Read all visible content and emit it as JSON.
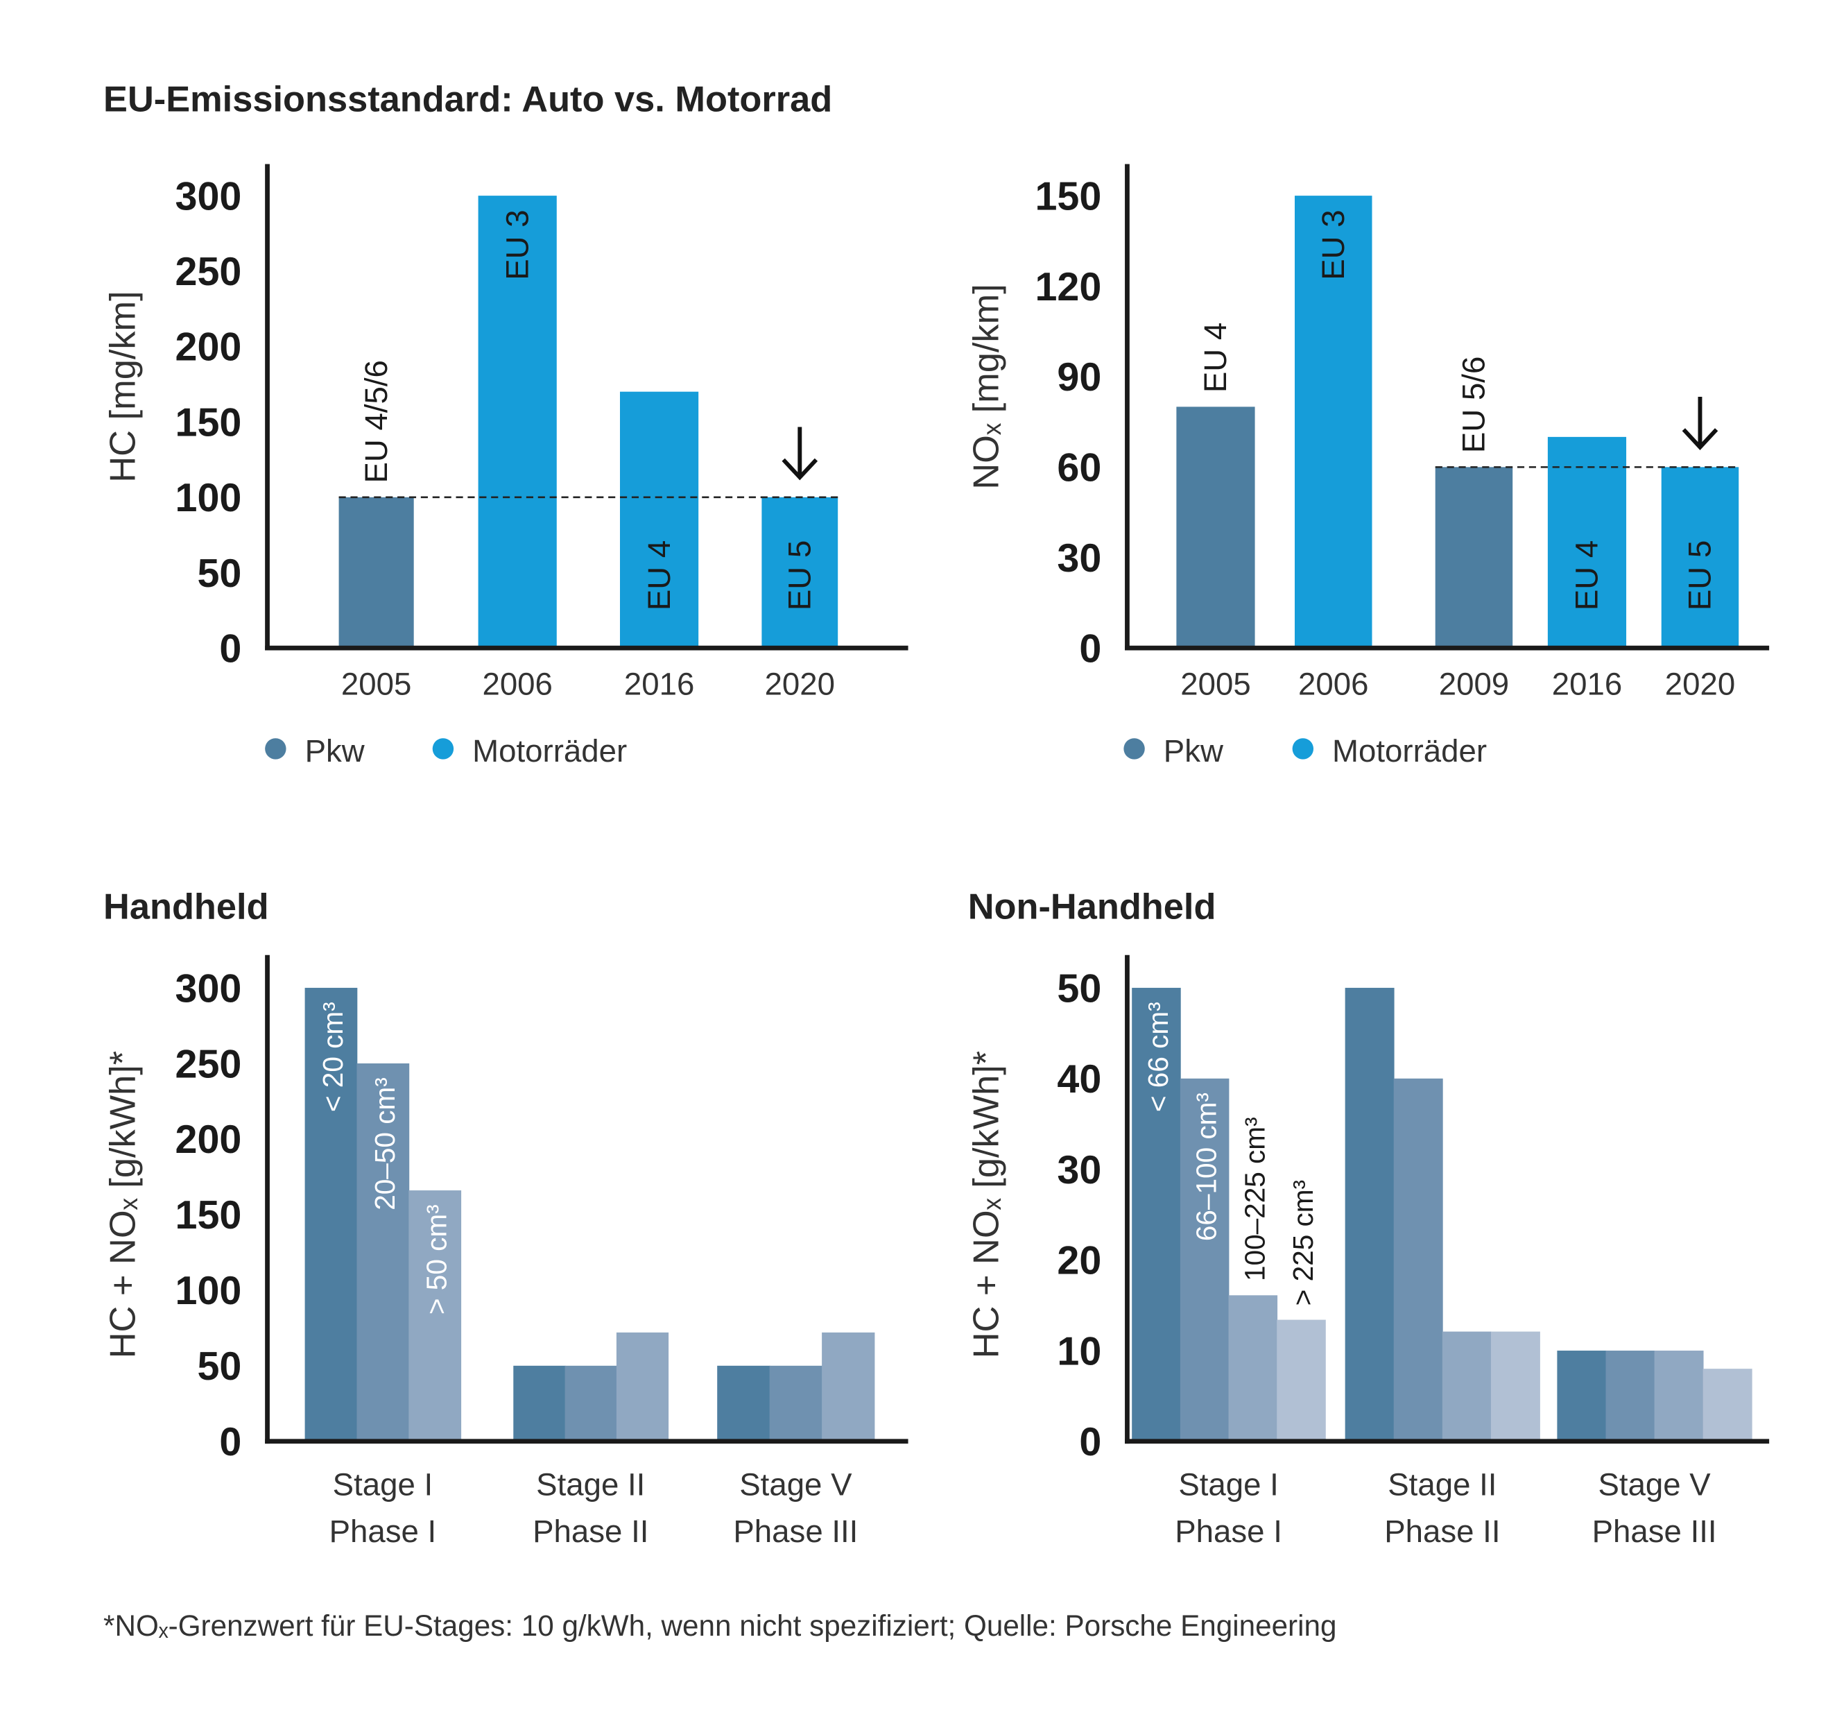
{
  "main_title": "EU-Emissionsstandard: Auto vs. Motorrad",
  "footnote": "*NOₓ-Grenzwert für EU-Stages: 10 g/kWh, wenn nicht spezifiziert; Quelle: Porsche Engineering",
  "colors": {
    "pkw": "#4d7ea0",
    "motorrad": "#169dd9",
    "shades": [
      "#4e7ea0",
      "#6f91b0",
      "#90a8c2",
      "#b1c0d4"
    ]
  },
  "chart_data": [
    {
      "id": "hc",
      "type": "bar",
      "title": "",
      "ylabel": "HC [mg/km]",
      "ylim": [
        0,
        300
      ],
      "yticks": [
        "0",
        "50",
        "100",
        "150",
        "200",
        "250",
        "300"
      ],
      "categories": [
        "2005",
        "2006",
        "2016",
        "2020"
      ],
      "values": [
        100,
        300,
        170,
        100
      ],
      "kinds": [
        "pkw",
        "motorrad",
        "motorrad",
        "motorrad"
      ],
      "labels": [
        "EU 4/5/6",
        "EU 3",
        "EU 4",
        "EU 5"
      ],
      "reference_line": 100,
      "arrow_on": "2020",
      "legend": [
        "Pkw",
        "Motorräder"
      ]
    },
    {
      "id": "nox",
      "type": "bar",
      "title": "",
      "ylabel": "NOₓ [mg/km]",
      "ylim": [
        0,
        150
      ],
      "yticks": [
        "0",
        "30",
        "60",
        "90",
        "120",
        "150"
      ],
      "categories": [
        "2005",
        "2006",
        "2009",
        "2016",
        "2020"
      ],
      "values": [
        80,
        150,
        60,
        70,
        60
      ],
      "kinds": [
        "pkw",
        "motorrad",
        "pkw",
        "motorrad",
        "motorrad"
      ],
      "labels": [
        "EU 4",
        "EU 3",
        "EU 5/6",
        "EU 4",
        "EU 5"
      ],
      "reference_line": 60,
      "arrow_on": "2020",
      "legend": [
        "Pkw",
        "Motorräder"
      ]
    },
    {
      "id": "handheld",
      "type": "bar",
      "title": "Handheld",
      "ylabel": "HC + NOₓ [g/kWh]*",
      "ylim": [
        0,
        300
      ],
      "yticks": [
        "0",
        "50",
        "100",
        "150",
        "200",
        "250",
        "300"
      ],
      "categories": [
        [
          "Stage I",
          "Phase I"
        ],
        [
          "Stage II",
          "Phase II"
        ],
        [
          "Stage V",
          "Phase III"
        ]
      ],
      "series": [
        {
          "name": "< 20 cm³",
          "values": [
            300,
            50,
            50
          ]
        },
        {
          "name": "20–50 cm³",
          "values": [
            250,
            50,
            50
          ]
        },
        {
          "name": "> 50 cm³",
          "values": [
            166,
            72,
            72
          ]
        }
      ]
    },
    {
      "id": "nonhandheld",
      "type": "bar",
      "title": "Non-Handheld",
      "ylabel": "HC + NOₓ [g/kWh]*",
      "ylim": [
        0,
        50
      ],
      "yticks": [
        "0",
        "10",
        "20",
        "30",
        "40",
        "50"
      ],
      "categories": [
        [
          "Stage I",
          "Phase I"
        ],
        [
          "Stage II",
          "Phase II"
        ],
        [
          "Stage V",
          "Phase III"
        ]
      ],
      "series": [
        {
          "name": "< 66 cm³",
          "values": [
            50,
            50,
            10
          ]
        },
        {
          "name": "66–100 cm³",
          "values": [
            40,
            40,
            10
          ]
        },
        {
          "name": "100–225 cm³",
          "values": [
            16.1,
            12.1,
            10
          ]
        },
        {
          "name": "> 225 cm³",
          "values": [
            13.4,
            12.1,
            8
          ]
        }
      ]
    }
  ]
}
